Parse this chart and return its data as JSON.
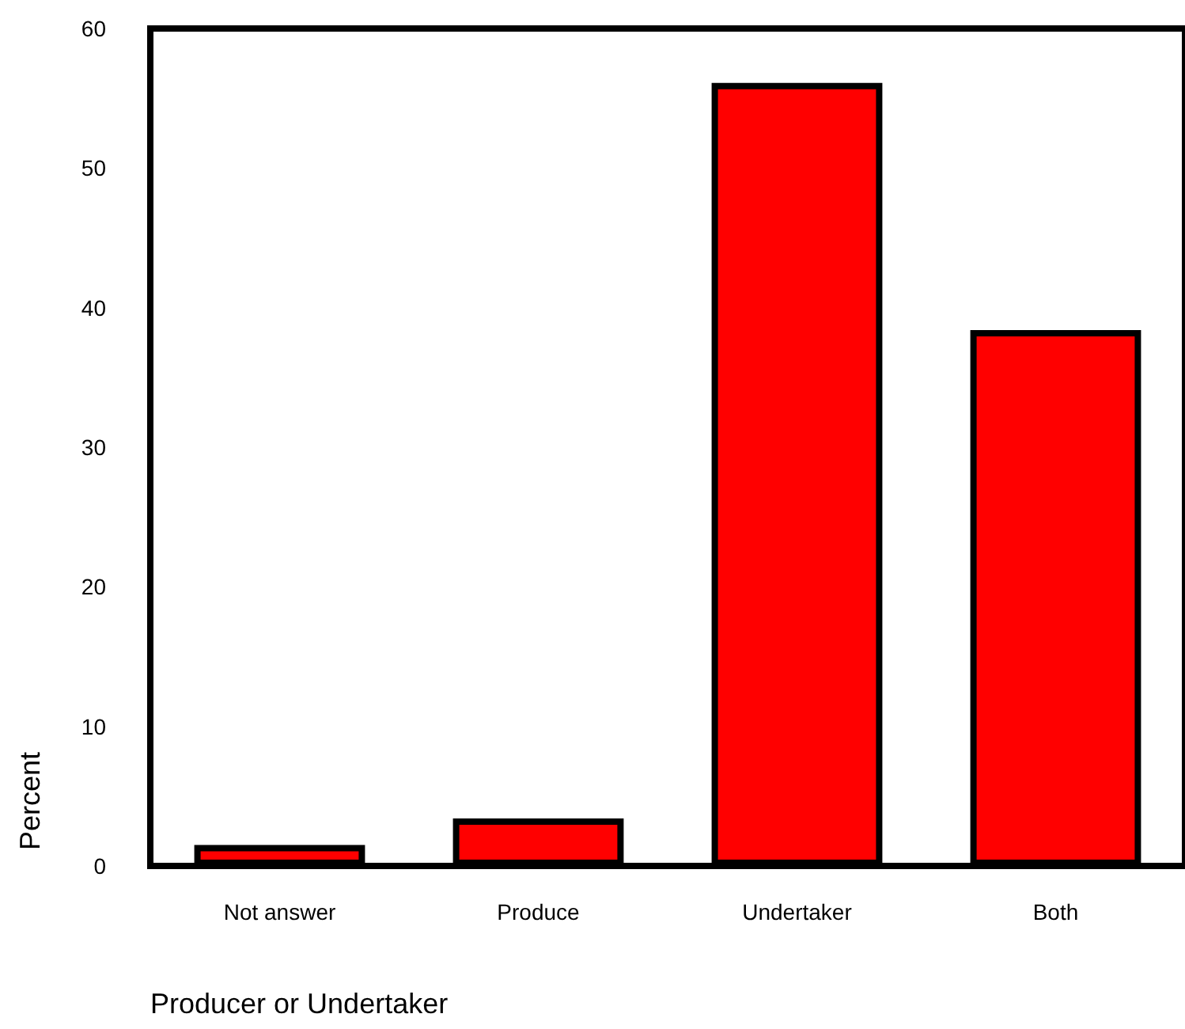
{
  "chart_data": {
    "type": "bar",
    "xlabel": "Producer or Undertaker",
    "ylabel": "Percent",
    "categories": [
      "Not answer",
      "Produce",
      "Undertaker",
      "Both"
    ],
    "values": [
      1.5,
      3.4,
      56.1,
      38.4
    ],
    "color": "#ff0000",
    "ylim": [
      0,
      60
    ],
    "yticks": [
      0,
      10,
      20,
      30,
      40,
      50,
      60
    ],
    "grid": false
  }
}
